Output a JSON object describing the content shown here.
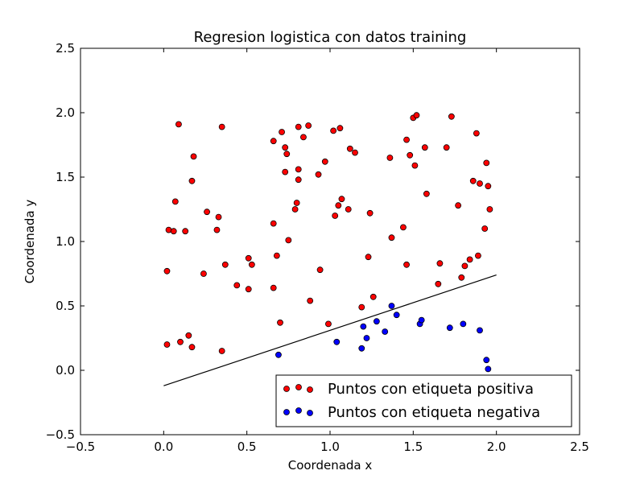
{
  "chart_data": {
    "type": "scatter",
    "title": "Regresion logistica con datos training",
    "xlabel": "Coordenada x",
    "ylabel": "Coordenada y",
    "xlim": [
      -0.5,
      2.5
    ],
    "ylim": [
      -0.5,
      2.5
    ],
    "x_ticks": [
      -0.5,
      0.0,
      0.5,
      1.0,
      1.5,
      2.0,
      2.5
    ],
    "y_ticks": [
      -0.5,
      0.0,
      0.5,
      1.0,
      1.5,
      2.0,
      2.5
    ],
    "x_tick_labels": [
      "−0.5",
      "0.0",
      "0.5",
      "1.0",
      "1.5",
      "2.0",
      "2.5"
    ],
    "y_tick_labels": [
      "−0.5",
      "0.0",
      "0.5",
      "1.0",
      "1.5",
      "2.0",
      "2.5"
    ],
    "grid": false,
    "legend_position": "lower-right",
    "decision_boundary": {
      "x": [
        0.0,
        2.0
      ],
      "y": [
        -0.12,
        0.74
      ],
      "color": "#000000"
    },
    "series": [
      {
        "name": "Puntos con etiqueta positiva",
        "color": "#ff0000",
        "points": [
          [
            0.09,
            1.91
          ],
          [
            0.35,
            1.89
          ],
          [
            0.18,
            1.66
          ],
          [
            0.17,
            1.47
          ],
          [
            0.07,
            1.31
          ],
          [
            0.26,
            1.23
          ],
          [
            0.33,
            1.19
          ],
          [
            0.03,
            1.09
          ],
          [
            0.06,
            1.08
          ],
          [
            0.13,
            1.08
          ],
          [
            0.32,
            1.09
          ],
          [
            0.02,
            0.77
          ],
          [
            0.24,
            0.75
          ],
          [
            0.37,
            0.82
          ],
          [
            0.44,
            0.66
          ],
          [
            0.51,
            0.63
          ],
          [
            0.51,
            0.87
          ],
          [
            0.53,
            0.82
          ],
          [
            0.02,
            0.2
          ],
          [
            0.1,
            0.22
          ],
          [
            0.15,
            0.27
          ],
          [
            0.17,
            0.18
          ],
          [
            0.35,
            0.15
          ],
          [
            0.66,
            1.78
          ],
          [
            0.71,
            1.85
          ],
          [
            0.73,
            1.73
          ],
          [
            0.74,
            1.68
          ],
          [
            0.73,
            1.54
          ],
          [
            0.81,
            1.89
          ],
          [
            0.84,
            1.81
          ],
          [
            0.87,
            1.9
          ],
          [
            0.81,
            1.56
          ],
          [
            0.81,
            1.48
          ],
          [
            0.8,
            1.3
          ],
          [
            0.79,
            1.25
          ],
          [
            0.66,
            1.14
          ],
          [
            0.75,
            1.01
          ],
          [
            0.68,
            0.89
          ],
          [
            0.66,
            0.64
          ],
          [
            0.7,
            0.37
          ],
          [
            0.88,
            0.54
          ],
          [
            0.93,
            1.52
          ],
          [
            0.97,
            1.62
          ],
          [
            1.02,
            1.86
          ],
          [
            1.06,
            1.88
          ],
          [
            1.05,
            1.28
          ],
          [
            1.07,
            1.33
          ],
          [
            1.03,
            1.2
          ],
          [
            1.11,
            1.25
          ],
          [
            1.12,
            1.72
          ],
          [
            1.15,
            1.69
          ],
          [
            0.94,
            0.78
          ],
          [
            0.99,
            0.36
          ],
          [
            1.19,
            0.49
          ],
          [
            1.23,
            0.88
          ],
          [
            1.26,
            0.57
          ],
          [
            1.24,
            1.22
          ],
          [
            1.36,
            1.65
          ],
          [
            1.37,
            1.03
          ],
          [
            1.44,
            1.11
          ],
          [
            1.46,
            0.82
          ],
          [
            1.46,
            1.79
          ],
          [
            1.48,
            1.67
          ],
          [
            1.5,
            1.96
          ],
          [
            1.52,
            1.98
          ],
          [
            1.51,
            1.59
          ],
          [
            1.57,
            1.73
          ],
          [
            1.58,
            1.37
          ],
          [
            1.65,
            0.67
          ],
          [
            1.66,
            0.83
          ],
          [
            1.7,
            1.73
          ],
          [
            1.73,
            1.97
          ],
          [
            1.77,
            1.28
          ],
          [
            1.79,
            0.72
          ],
          [
            1.81,
            0.81
          ],
          [
            1.84,
            0.86
          ],
          [
            1.86,
            1.47
          ],
          [
            1.88,
            1.84
          ],
          [
            1.9,
            1.45
          ],
          [
            1.89,
            0.89
          ],
          [
            1.93,
            1.1
          ],
          [
            1.94,
            1.61
          ],
          [
            1.95,
            1.43
          ],
          [
            1.96,
            1.25
          ]
        ]
      },
      {
        "name": "Puntos con etiqueta negativa",
        "color": "#0000ff",
        "points": [
          [
            0.69,
            0.12
          ],
          [
            1.04,
            0.22
          ],
          [
            1.19,
            0.17
          ],
          [
            1.2,
            0.34
          ],
          [
            1.22,
            0.25
          ],
          [
            1.28,
            0.38
          ],
          [
            1.33,
            0.3
          ],
          [
            1.37,
            0.5
          ],
          [
            1.4,
            0.43
          ],
          [
            1.54,
            0.36
          ],
          [
            1.55,
            0.39
          ],
          [
            1.72,
            0.33
          ],
          [
            1.8,
            0.36
          ],
          [
            1.9,
            0.31
          ],
          [
            1.94,
            0.08
          ],
          [
            1.95,
            0.01
          ]
        ]
      }
    ]
  }
}
